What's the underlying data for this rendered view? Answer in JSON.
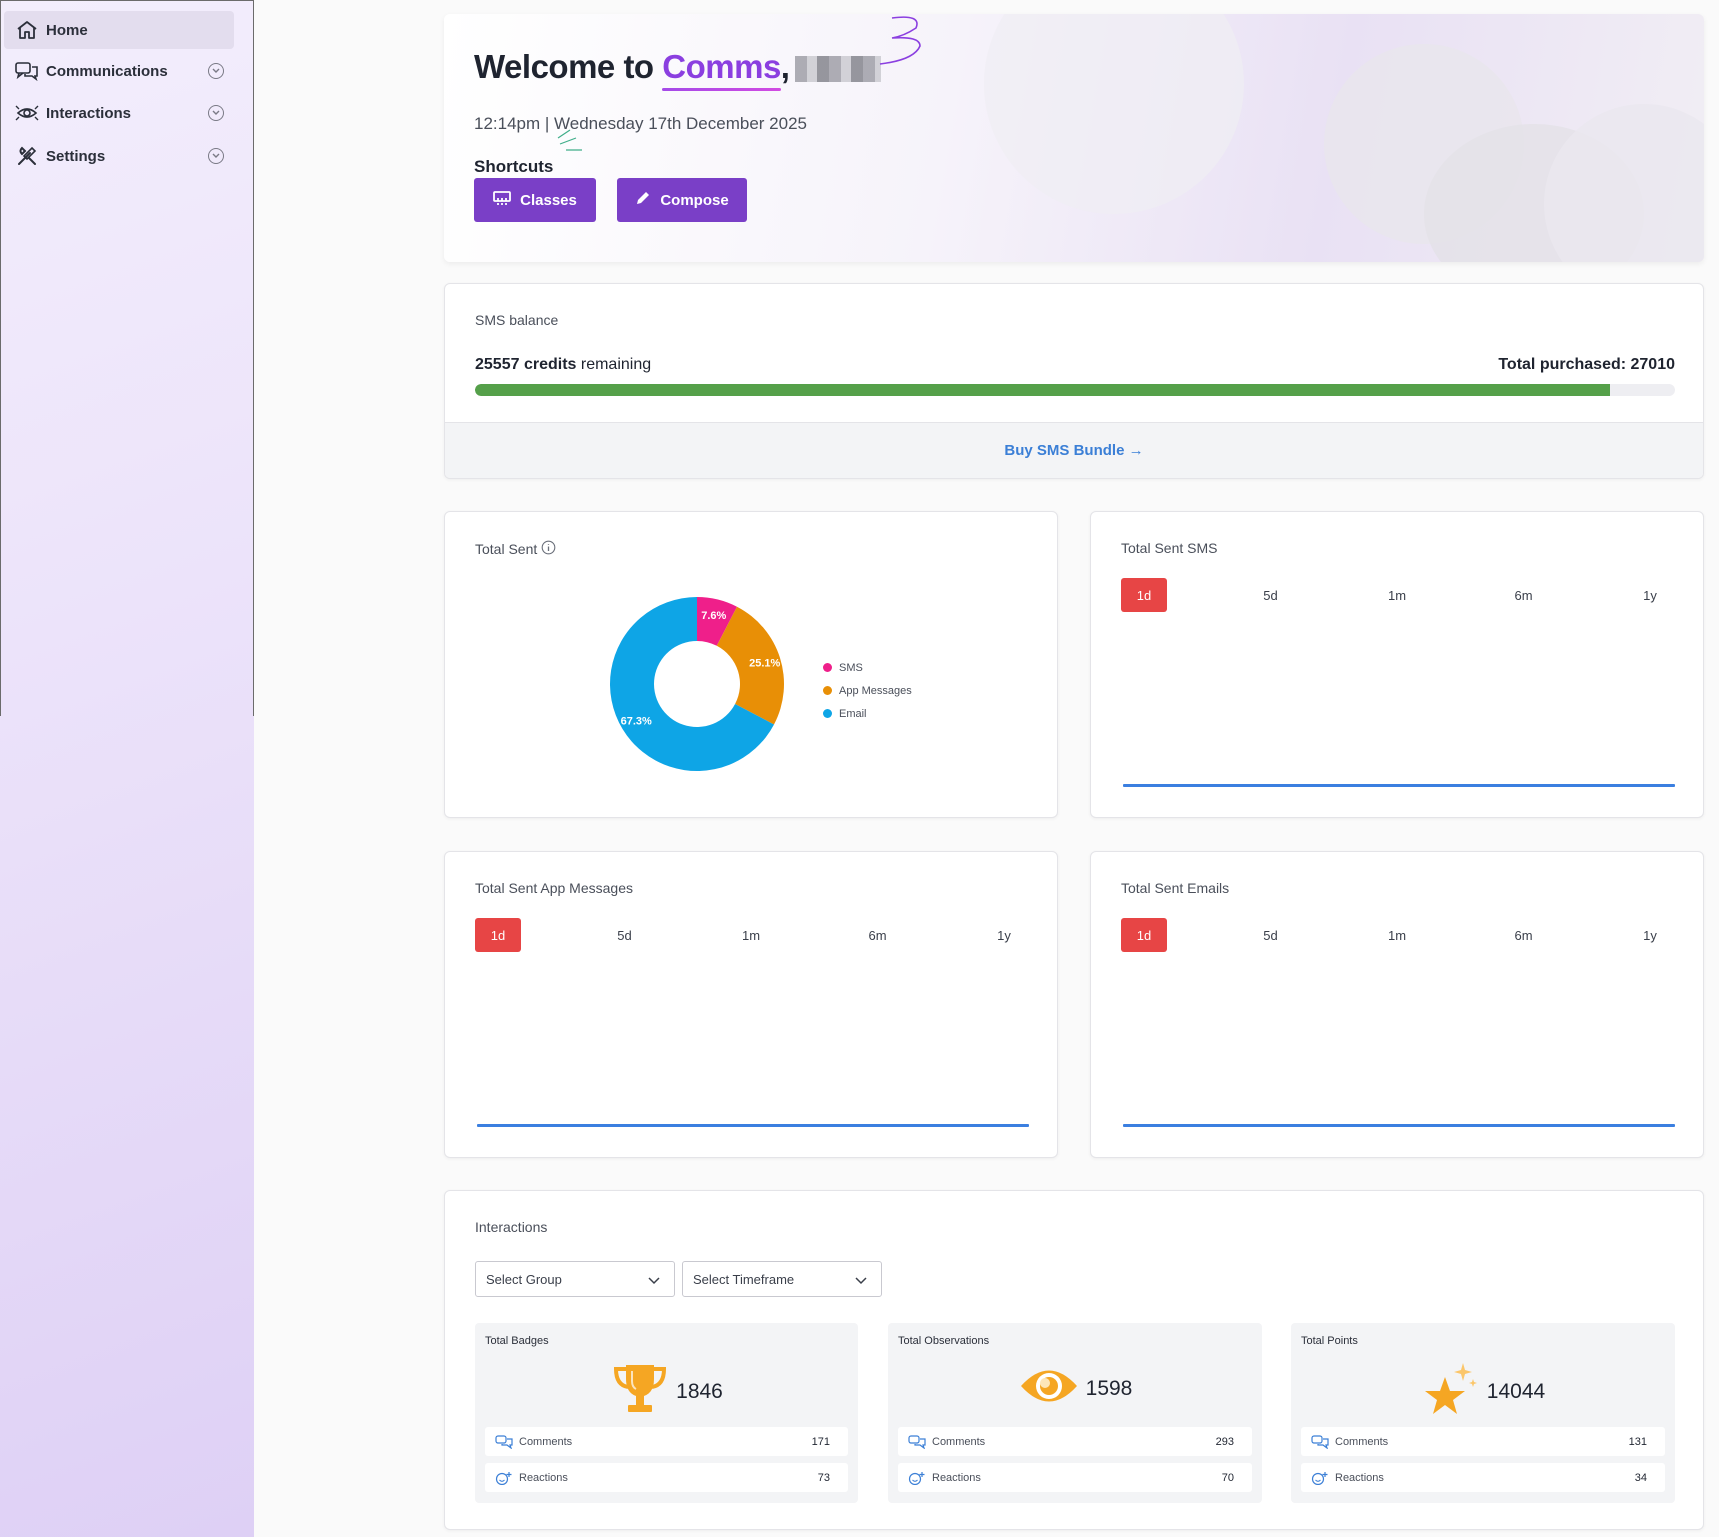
{
  "sidebar": {
    "items": [
      {
        "label": "Home",
        "icon": "home-icon",
        "active": true
      },
      {
        "label": "Communications",
        "icon": "chat-icon"
      },
      {
        "label": "Interactions",
        "icon": "eye-icon"
      },
      {
        "label": "Settings",
        "icon": "tools-icon"
      }
    ]
  },
  "welcome": {
    "prefix": "Welcome to ",
    "brand": "Comms",
    "separator": ",",
    "datetime": "12:14pm | Wednesday 17th December 2025",
    "shortcuts_label": "Shortcuts",
    "buttons": [
      {
        "label": "Classes",
        "icon": "classroom-icon"
      },
      {
        "label": "Compose",
        "icon": "pencil-icon"
      }
    ]
  },
  "sms": {
    "title": "SMS balance",
    "credits": "25557",
    "credits_suffix": " credits",
    "remaining_label": " remaining",
    "total_label": "Total purchased: 27010",
    "remaining_fraction": 0.9462,
    "buy_label": "Buy SMS Bundle →"
  },
  "total_sent": {
    "title": "Total Sent"
  },
  "chart_data": {
    "type": "pie",
    "title": "Total Sent",
    "categories": [
      "SMS",
      "App Messages",
      "Email"
    ],
    "values": [
      7.6,
      25.1,
      67.3
    ],
    "labels": [
      "7.6%",
      "25.1%",
      "67.3%"
    ],
    "colors": [
      "#ef1f8a",
      "#e88f06",
      "#0ea5e6"
    ],
    "legend": "right"
  },
  "charts": [
    {
      "title": "Total Sent SMS"
    },
    {
      "title": "Total Sent App Messages"
    },
    {
      "title": "Total Sent Emails"
    }
  ],
  "timeframes": [
    "1d",
    "5d",
    "1m",
    "6m",
    "1y"
  ],
  "interactions": {
    "title": "Interactions",
    "group_placeholder": "Select Group",
    "timeframe_placeholder": "Select Timeframe",
    "stats": [
      {
        "label": "Total Badges",
        "value": "1846",
        "icon": "trophy-icon",
        "comments": "171",
        "reactions": "73"
      },
      {
        "label": "Total Observations",
        "value": "1598",
        "icon": "eye-icon",
        "comments": "293",
        "reactions": "70"
      },
      {
        "label": "Total Points",
        "value": "14044",
        "icon": "star-icon",
        "comments": "131",
        "reactions": "34"
      }
    ],
    "comments_label": "Comments",
    "reactions_label": "Reactions"
  }
}
